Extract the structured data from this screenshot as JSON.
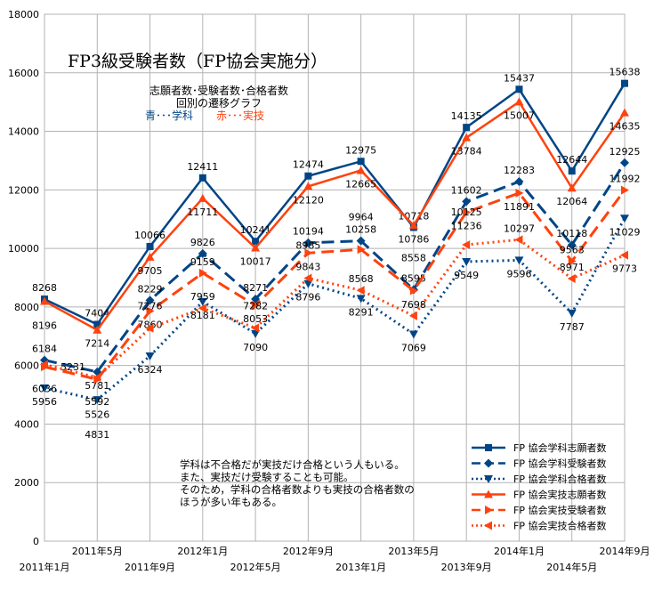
{
  "chart_data": {
    "type": "line",
    "title": "FP3級受験者数（FP協会実施分）",
    "subtitle_lines": [
      "志願者数･受験者数･合格者数",
      "回別の遷移グラフ"
    ],
    "color_key": {
      "blue": "青･･･学科",
      "red": "赤･･･実技"
    },
    "note_lines": [
      "学科は不合格だが実技だけ合格という人もいる。",
      "また、実技だけ受験することも可能。",
      "そのため，学科の合格者数よりも実技の合格者数の",
      "ほうが多い年もある。"
    ],
    "categories": [
      "2011年1月",
      "2011年5月",
      "2011年9月",
      "2012年1月",
      "2012年5月",
      "2012年9月",
      "2013年1月",
      "2013年5月",
      "2013年9月",
      "2014年1月",
      "2014年5月",
      "2014年9月"
    ],
    "ylim": [
      0,
      18000
    ],
    "yticks": [
      0,
      2000,
      4000,
      6000,
      8000,
      10000,
      12000,
      14000,
      16000,
      18000
    ],
    "grid": true,
    "legend_position": "bottom-right",
    "series": [
      {
        "name": "FP 協会学科志願者数",
        "color": "#004586",
        "dash": "solid",
        "marker": "square",
        "label_pos": "above",
        "values": [
          8268,
          7404,
          10066,
          12411,
          10241,
          12474,
          12975,
          10718,
          14135,
          15437,
          12644,
          15638
        ]
      },
      {
        "name": "FP 協会学科受験者数",
        "color": "#004586",
        "dash": "long-dash",
        "marker": "diamond",
        "label_pos": "above",
        "values": [
          6184,
          5781,
          8229,
          9826,
          8271,
          10194,
          10258,
          8595,
          11602,
          12283,
          10118,
          12925
        ]
      },
      {
        "name": "FP 協会学科合格者数",
        "color": "#004586",
        "dash": "dot",
        "marker": "triangle-down",
        "label_pos": "below",
        "values": [
          5231,
          4831,
          6324,
          8181,
          7090,
          8796,
          8291,
          7069,
          9549,
          9596,
          7787,
          11029
        ]
      },
      {
        "name": "FP 協会実技志願者数",
        "color": "#ff420e",
        "dash": "solid",
        "marker": "triangle-up",
        "label_pos": "below",
        "values": [
          8196,
          7214,
          9705,
          11711,
          10017,
          12120,
          12665,
          10786,
          13784,
          15007,
          12064,
          14635
        ]
      },
      {
        "name": "FP 協会実技受験者数",
        "color": "#ff420e",
        "dash": "long-dash",
        "marker": "triangle-right",
        "label_pos": "above",
        "values": [
          5956,
          5526,
          7860,
          9159,
          8053,
          9843,
          9964,
          8558,
          11236,
          11891,
          9563,
          11992
        ]
      },
      {
        "name": "FP 協会実技合格者数",
        "color": "#ff420e",
        "dash": "dot",
        "marker": "triangle-left",
        "label_pos": "above",
        "values": [
          6036,
          5592,
          7276,
          7959,
          7282,
          8985,
          8568,
          7698,
          10125,
          10297,
          8971,
          9773
        ]
      }
    ]
  }
}
